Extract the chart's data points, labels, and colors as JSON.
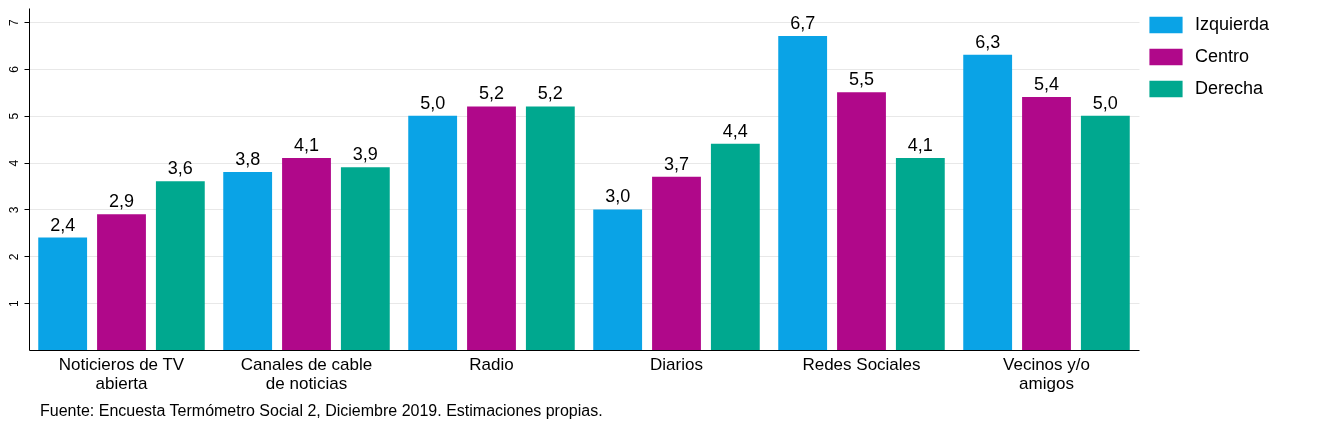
{
  "chart_data": {
    "type": "bar",
    "categories": [
      "Noticieros de TV abierta",
      "Canales de cable de noticias",
      "Radio",
      "Diarios",
      "Redes Sociales",
      "Vecinos y/o amigos"
    ],
    "series": [
      {
        "name": "Izquierda",
        "color": "#0aa3e6",
        "values": [
          2.4,
          3.8,
          5.0,
          3.0,
          6.7,
          6.3
        ],
        "value_labels": [
          "2,4",
          "3,8",
          "5,0",
          "3,0",
          "6,7",
          "6,3"
        ]
      },
      {
        "name": "Centro",
        "color": "#b0088a",
        "values": [
          2.9,
          4.1,
          5.2,
          3.7,
          5.5,
          5.4
        ],
        "value_labels": [
          "2,9",
          "4,1",
          "5,2",
          "3,7",
          "5,5",
          "5,4"
        ]
      },
      {
        "name": "Derecha",
        "color": "#00a88f",
        "values": [
          3.6,
          3.9,
          5.2,
          4.4,
          4.1,
          5.0
        ],
        "value_labels": [
          "3,6",
          "3,9",
          "5,2",
          "4,4",
          "4,1",
          "5,0"
        ]
      }
    ],
    "ylim": [
      0,
      7.3
    ],
    "yticks": [
      1,
      2,
      3,
      4,
      5,
      6,
      7
    ],
    "grid": "y",
    "legend": "right",
    "annotations": [
      "Fuente: Encuesta Termómetro Social 2, Diciembre 2019. Estimaciones propias."
    ]
  }
}
